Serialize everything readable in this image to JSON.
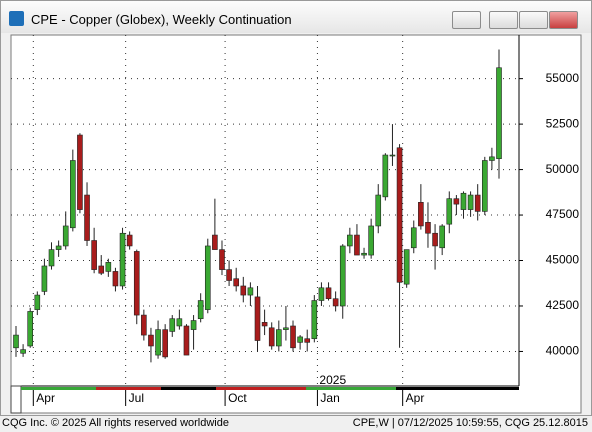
{
  "window_title": "CPE - Copper (Globex), Weekly Continuation",
  "footer_left": "CQG Inc. © 2025 All rights reserved worldwide",
  "footer_right": "CPE,W | 07/12/2025 10:59:55, CQG 25.12.8015",
  "chart_data": {
    "type": "candlestick",
    "annotation": "2025",
    "categories": [
      null,
      null,
      null,
      "Apr",
      null,
      null,
      null,
      null,
      null,
      null,
      null,
      null,
      null,
      null,
      null,
      null,
      "Jul",
      null,
      null,
      null,
      null,
      null,
      null,
      null,
      null,
      null,
      null,
      null,
      null,
      null,
      "Oct",
      null,
      null,
      null,
      null,
      null,
      null,
      null,
      null,
      null,
      null,
      null,
      null,
      "Jan",
      null,
      null,
      null,
      null,
      null,
      null,
      null,
      null,
      null,
      null,
      null,
      "Apr",
      null,
      null,
      null,
      null,
      null,
      null,
      null,
      null,
      null,
      null,
      null,
      null,
      null
    ],
    "open": [
      40200,
      39900,
      40300,
      42300,
      43300,
      44700,
      45600,
      45800,
      46800,
      51900,
      48600,
      46100,
      44700,
      44400,
      44400,
      43600,
      46400,
      45500,
      42000,
      40900,
      39800,
      41200,
      41100,
      41400,
      41400,
      41200,
      41800,
      42300,
      46400,
      45600,
      44500,
      44000,
      43600,
      43100,
      43000,
      41600,
      41300,
      40300,
      41200,
      41400,
      40500,
      40700,
      40700,
      42800,
      43500,
      42900,
      42500,
      45800,
      46400,
      45300,
      45300,
      46900,
      48500,
      50800,
      51200,
      43700,
      45700,
      48200,
      47100,
      46500,
      45700,
      47000,
      48400,
      47800,
      47800,
      48600,
      47700,
      50500,
      50600
    ],
    "high": [
      41400,
      40400,
      42400,
      43300,
      45100,
      46000,
      46100,
      47700,
      51100,
      52000,
      49300,
      46800,
      45300,
      45100,
      44600,
      46800,
      46600,
      45600,
      42300,
      41300,
      41700,
      41500,
      42000,
      42300,
      41500,
      42000,
      43200,
      46200,
      48400,
      46100,
      45000,
      44600,
      44100,
      43800,
      43600,
      42300,
      41600,
      41700,
      42500,
      41700,
      40900,
      41200,
      43100,
      43800,
      43800,
      43300,
      45900,
      46800,
      47000,
      45700,
      47300,
      49200,
      50900,
      52500,
      51400,
      45600,
      47200,
      49200,
      48200,
      47000,
      47000,
      48800,
      48600,
      48800,
      48800,
      49200,
      50700,
      51200,
      56600
    ],
    "low": [
      39700,
      39700,
      40200,
      42000,
      43100,
      44500,
      45200,
      45600,
      46600,
      47600,
      45800,
      44300,
      44200,
      44100,
      43300,
      43400,
      45600,
      41500,
      40600,
      39400,
      39600,
      39600,
      40800,
      41200,
      39800,
      40100,
      41600,
      42100,
      45600,
      44200,
      43600,
      43300,
      42700,
      42500,
      40000,
      40900,
      40100,
      40000,
      40600,
      40000,
      40100,
      40000,
      40500,
      42500,
      42800,
      42200,
      41800,
      45400,
      45300,
      45100,
      45100,
      46500,
      48300,
      50200,
      40200,
      43500,
      45400,
      46700,
      45700,
      44500,
      45300,
      46500,
      47500,
      47300,
      47400,
      47200,
      47500,
      50000,
      49500
    ],
    "close": [
      40900,
      40100,
      42200,
      43100,
      44700,
      45600,
      45800,
      46900,
      50500,
      47800,
      46100,
      44500,
      44300,
      44900,
      43600,
      46500,
      45800,
      42000,
      40900,
      40300,
      41200,
      39700,
      41800,
      41800,
      39800,
      41700,
      42800,
      45800,
      45600,
      44500,
      43900,
      43600,
      43100,
      43500,
      40600,
      41400,
      40300,
      41200,
      41300,
      40200,
      40800,
      40500,
      42800,
      43500,
      42900,
      42500,
      45800,
      46400,
      45300,
      45400,
      46900,
      48600,
      50800,
      50800,
      43800,
      45600,
      46800,
      46900,
      46500,
      45800,
      46900,
      48400,
      48100,
      48700,
      48600,
      47700,
      50500,
      50700,
      55600
    ],
    "up_color": "#3aa832",
    "down_color": "#a81c1c",
    "ylim": [
      38100,
      57400
    ],
    "yticks": [
      40000,
      42500,
      45000,
      47500,
      50000,
      52500,
      55000
    ],
    "grid": true
  }
}
